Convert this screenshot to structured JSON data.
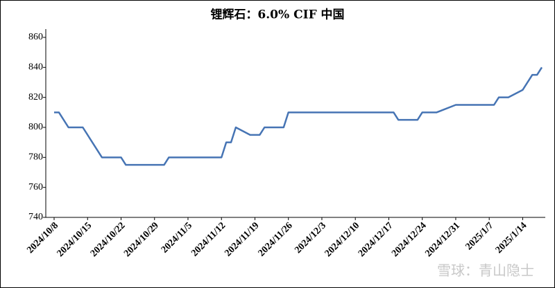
{
  "chart_data": {
    "type": "line",
    "title": "锂辉石：6.0%  CIF 中国",
    "x": [
      "2024/10/8",
      "2024/10/9",
      "2024/10/11",
      "2024/10/14",
      "2024/10/18",
      "2024/10/22",
      "2024/10/23",
      "2024/10/31",
      "2024/11/1",
      "2024/11/12",
      "2024/11/13",
      "2024/11/14",
      "2024/11/15",
      "2024/11/18",
      "2024/11/20",
      "2024/11/21",
      "2024/11/25",
      "2024/11/26",
      "2024/12/18",
      "2024/12/19",
      "2024/12/23",
      "2024/12/24",
      "2024/12/27",
      "2024/12/31",
      "2025/1/8",
      "2025/1/9",
      "2025/1/11",
      "2025/1/14",
      "2025/1/16",
      "2025/1/17",
      "2025/1/18"
    ],
    "series": [
      {
        "name": "锂辉石",
        "color": "#4674b4",
        "values": [
          810,
          810,
          800,
          800,
          780,
          780,
          775,
          775,
          780,
          780,
          790,
          790,
          800,
          795,
          795,
          800,
          800,
          810,
          810,
          805,
          805,
          810,
          810,
          815,
          815,
          820,
          820,
          825,
          835,
          835,
          840
        ]
      }
    ],
    "xlim": [
      "2024/10/8",
      "2025/1/18"
    ],
    "xticks": [
      "2024/10/8",
      "2024/10/15",
      "2024/10/22",
      "2024/10/29",
      "2024/11/5",
      "2024/11/12",
      "2024/11/19",
      "2024/11/26",
      "2024/12/3",
      "2024/12/10",
      "2024/12/17",
      "2024/12/24",
      "2024/12/31",
      "2025/1/7",
      "2025/1/14"
    ],
    "ylim": [
      740,
      860
    ],
    "yticks": [
      740,
      760,
      780,
      800,
      820,
      840,
      860
    ],
    "watermark": "雪球：青山隐士"
  }
}
